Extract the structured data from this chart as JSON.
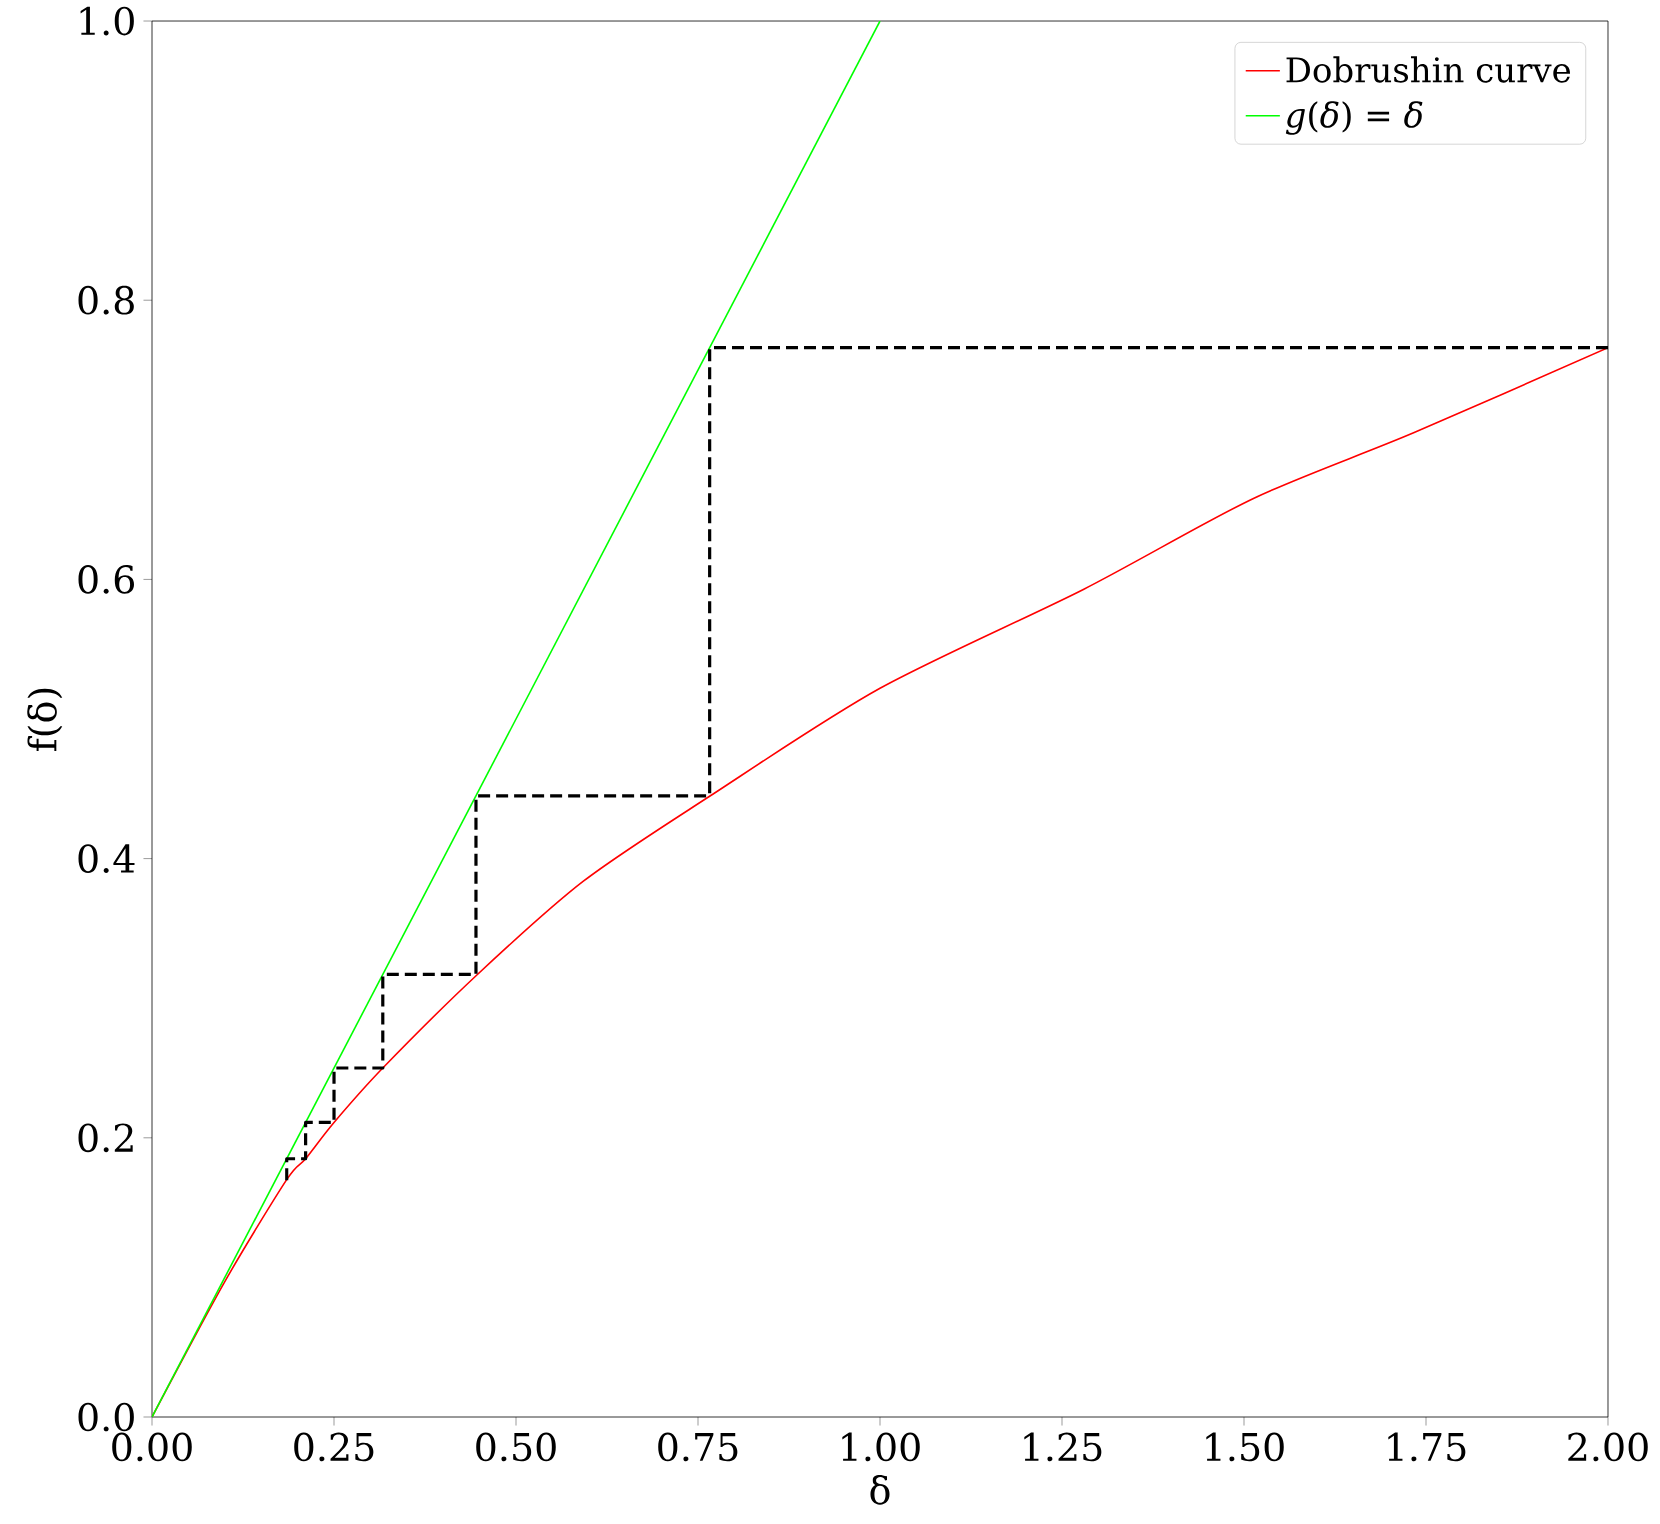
{
  "chart_data": {
    "type": "line",
    "xlabel": "δ",
    "ylabel": "f(δ)",
    "xlim": [
      0,
      2
    ],
    "ylim": [
      0,
      1
    ],
    "xticks": [
      {
        "value": 0,
        "label": "0.00"
      },
      {
        "value": 0.25,
        "label": "0.25"
      },
      {
        "value": 0.5,
        "label": "0.50"
      },
      {
        "value": 0.75,
        "label": "0.75"
      },
      {
        "value": 1,
        "label": "1.00"
      },
      {
        "value": 1.25,
        "label": "1.25"
      },
      {
        "value": 1.5,
        "label": "1.50"
      },
      {
        "value": 1.75,
        "label": "1.75"
      },
      {
        "value": 2,
        "label": "2.00"
      }
    ],
    "yticks": [
      {
        "value": 0,
        "label": "0.0"
      },
      {
        "value": 0.2,
        "label": "0.2"
      },
      {
        "value": 0.4,
        "label": "0.4"
      },
      {
        "value": 0.6,
        "label": "0.6"
      },
      {
        "value": 0.8,
        "label": "0.8"
      },
      {
        "value": 1,
        "label": "1.0"
      }
    ],
    "legend": "top right",
    "series": [
      {
        "name": "Dobrushin curve",
        "color": "#ff0000",
        "x": [
          0,
          0.1,
          0.185,
          0.211,
          0.25,
          0.317,
          0.447,
          0.593,
          0.767,
          1.0,
          1.28,
          1.513,
          1.733,
          2.0
        ],
        "values": [
          0,
          0.097,
          0.17,
          0.185,
          0.211,
          0.25,
          0.317,
          0.384,
          0.445,
          0.522,
          0.593,
          0.658,
          0.705,
          0.766
        ]
      },
      {
        "name": "*g*(*δ*) = *δ*",
        "color": "#00ff00",
        "x": [
          0,
          1
        ],
        "values": [
          0,
          1
        ]
      },
      {
        "color": "#000000",
        "line_style": "dashed",
        "x": [
          2,
          0.766,
          0.766,
          0.445,
          0.445,
          0.317,
          0.317,
          0.25,
          0.25,
          0.211,
          0.211,
          0.185,
          0.185
        ],
        "values": [
          0.766,
          0.766,
          0.445,
          0.445,
          0.317,
          0.317,
          0.25,
          0.25,
          0.211,
          0.211,
          0.185,
          0.185,
          0.167
        ]
      }
    ]
  }
}
